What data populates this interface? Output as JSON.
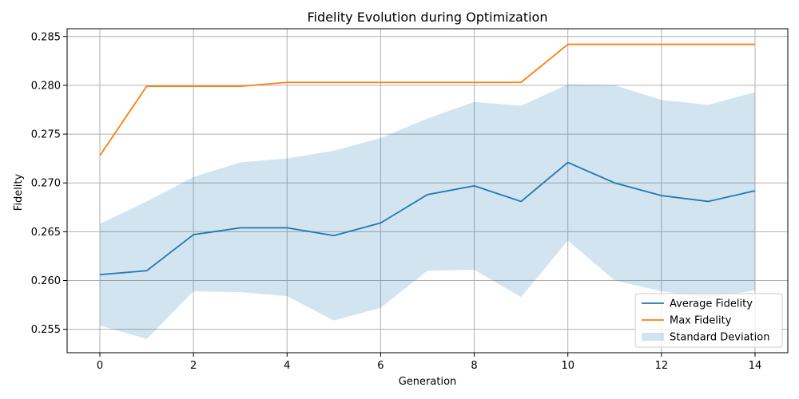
{
  "chart_data": {
    "type": "line",
    "title": "Fidelity Evolution during Optimization",
    "xlabel": "Generation",
    "ylabel": "Fidelity",
    "xlim": [
      -0.7,
      14.7
    ],
    "ylim": [
      0.2526,
      0.2858
    ],
    "x_ticks": [
      0,
      2,
      4,
      6,
      8,
      10,
      12,
      14
    ],
    "y_ticks": [
      0.255,
      0.26,
      0.265,
      0.27,
      0.275,
      0.28,
      0.285
    ],
    "y_tick_labels": [
      "0.255",
      "0.260",
      "0.265",
      "0.270",
      "0.275",
      "0.280",
      "0.285"
    ],
    "grid": true,
    "legend_position": "lower-right",
    "x": [
      0,
      1,
      2,
      3,
      4,
      5,
      6,
      7,
      8,
      9,
      10,
      11,
      12,
      13,
      14
    ],
    "series": [
      {
        "name": "Average Fidelity",
        "color": "#1f77b4",
        "values": [
          0.2606,
          0.261,
          0.2647,
          0.2654,
          0.2654,
          0.2646,
          0.2659,
          0.2688,
          0.2697,
          0.2681,
          0.2721,
          0.27,
          0.2687,
          0.2681,
          0.2692
        ]
      },
      {
        "name": "Max Fidelity",
        "color": "#ff7f0e",
        "values": [
          0.2728,
          0.2799,
          0.2799,
          0.2799,
          0.2803,
          0.2803,
          0.2803,
          0.2803,
          0.2803,
          0.2803,
          0.2842,
          0.2842,
          0.2842,
          0.2842,
          0.2842
        ]
      }
    ],
    "band": {
      "name": "Standard Deviation",
      "color": "#1f77b4",
      "opacity": 0.2,
      "upper": [
        0.2658,
        0.2681,
        0.2706,
        0.2721,
        0.2725,
        0.2733,
        0.2746,
        0.2766,
        0.2783,
        0.2779,
        0.2801,
        0.28,
        0.2785,
        0.278,
        0.2793
      ],
      "lower": [
        0.2554,
        0.254,
        0.2589,
        0.2588,
        0.2584,
        0.2559,
        0.2572,
        0.261,
        0.2611,
        0.2583,
        0.2641,
        0.26,
        0.2589,
        0.2582,
        0.259
      ]
    }
  }
}
